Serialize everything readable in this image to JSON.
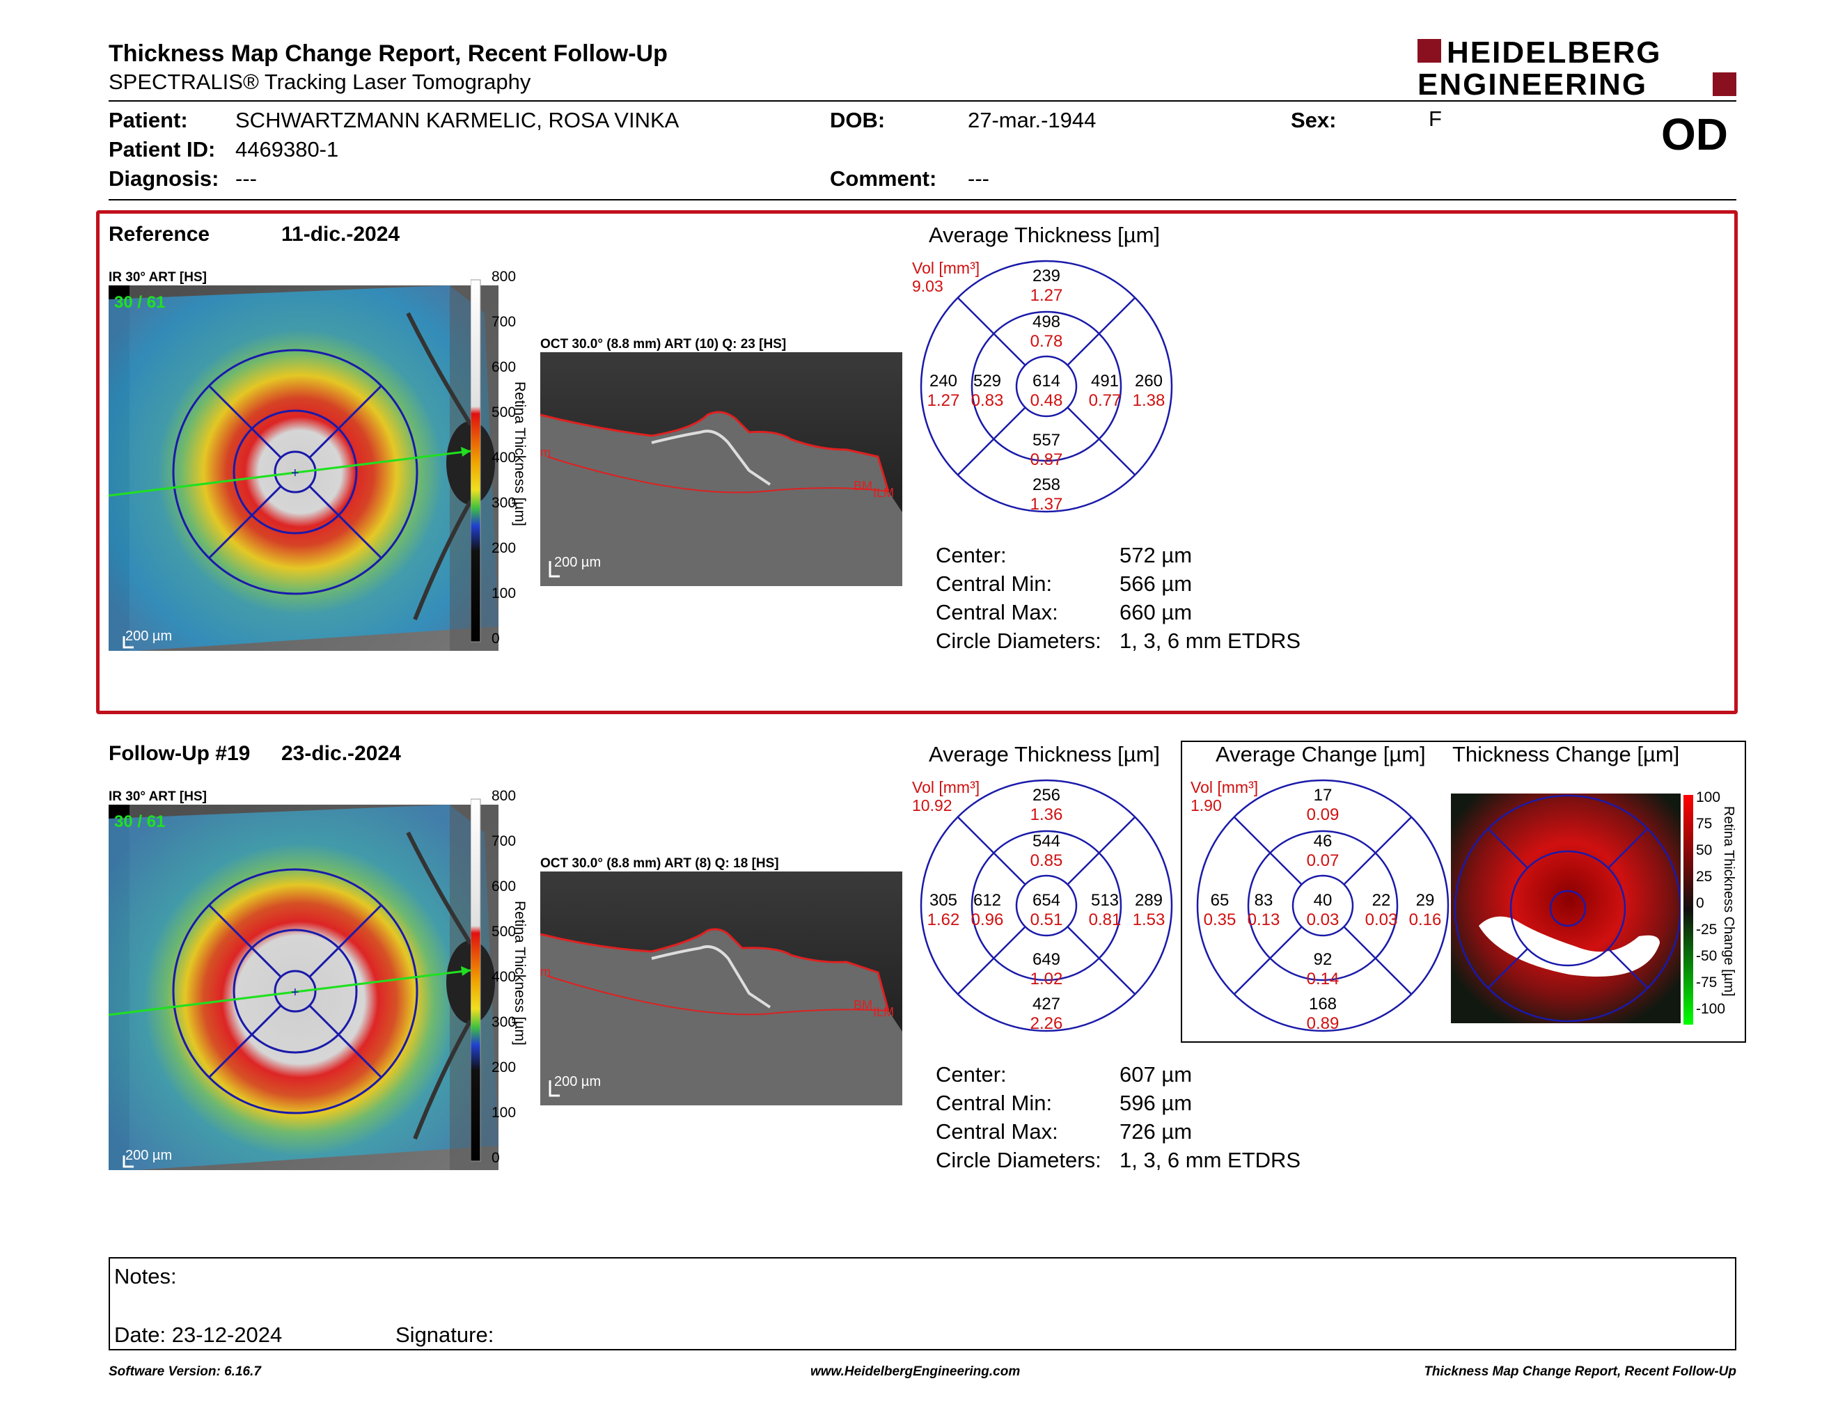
{
  "header": {
    "title": "Thickness Map Change Report, Recent Follow-Up",
    "subtitle": "SPECTRALIS® Tracking Laser Tomography",
    "logo_line1": "HEIDELBERG",
    "logo_line2": "ENGINEERING",
    "eye": "OD"
  },
  "patient": {
    "patient_label": "Patient:",
    "patient_value": "SCHWARTZMANN KARMELIC, ROSA VINKA",
    "id_label": "Patient ID:",
    "id_value": "4469380-1",
    "diagnosis_label": "Diagnosis:",
    "diagnosis_value": "---",
    "dob_label": "DOB:",
    "dob_value": "27-mar.-1944",
    "comment_label": "Comment:",
    "comment_value": "---",
    "sex_label": "Sex:",
    "sex_value": "F"
  },
  "reference": {
    "label": "Reference",
    "date": "11-dic.-2024",
    "ir_caption": "IR 30° ART [HS]",
    "ir_counter": "30 / 61",
    "ir_scale": "200 µm",
    "scale_axis_label": "Retina Thickness [µm]",
    "scale_ticks": [
      "800",
      "700",
      "600",
      "500",
      "400",
      "300",
      "200",
      "100",
      "0"
    ],
    "oct_caption": "OCT 30.0° (8.8 mm) ART (10) Q: 23 [HS]",
    "oct_scale": "200 µm",
    "avg_title": "Average Thickness [µm]",
    "vol_label": "Vol [mm³]",
    "vol_total": "9.03",
    "grid": {
      "outer_top": "239",
      "outer_top_v": "1.27",
      "inner_top": "498",
      "inner_top_v": "0.78",
      "outer_left": "240",
      "outer_left_v": "1.27",
      "inner_left": "529",
      "inner_left_v": "0.83",
      "center": "614",
      "center_v": "0.48",
      "inner_right": "491",
      "inner_right_v": "0.77",
      "outer_right": "260",
      "outer_right_v": "1.38",
      "inner_bottom": "557",
      "inner_bottom_v": "0.87",
      "outer_bottom": "258",
      "outer_bottom_v": "1.37"
    },
    "stats": [
      {
        "label": "Center:",
        "value": "572 µm"
      },
      {
        "label": "Central Min:",
        "value": "566 µm"
      },
      {
        "label": "Central Max:",
        "value": "660 µm"
      },
      {
        "label": "Circle Diameters:",
        "value": "1, 3, 6 mm ETDRS"
      }
    ]
  },
  "followup": {
    "label": "Follow-Up #19",
    "date": "23-dic.-2024",
    "ir_caption": "IR 30° ART [HS]",
    "ir_counter": "30 / 61",
    "ir_scale": "200 µm",
    "scale_axis_label": "Retina Thickness [µm]",
    "scale_ticks": [
      "800",
      "700",
      "600",
      "500",
      "400",
      "300",
      "200",
      "100",
      "0"
    ],
    "oct_caption": "OCT 30.0° (8.8 mm) ART (8) Q: 18 [HS]",
    "oct_scale": "200 µm",
    "avg_title": "Average Thickness [µm]",
    "vol_label": "Vol [mm³]",
    "vol_total": "10.92",
    "grid": {
      "outer_top": "256",
      "outer_top_v": "1.36",
      "inner_top": "544",
      "inner_top_v": "0.85",
      "outer_left": "305",
      "outer_left_v": "1.62",
      "inner_left": "612",
      "inner_left_v": "0.96",
      "center": "654",
      "center_v": "0.51",
      "inner_right": "513",
      "inner_right_v": "0.81",
      "outer_right": "289",
      "outer_right_v": "1.53",
      "inner_bottom": "649",
      "inner_bottom_v": "1.02",
      "outer_bottom": "427",
      "outer_bottom_v": "2.26"
    },
    "stats": [
      {
        "label": "Center:",
        "value": "607 µm"
      },
      {
        "label": "Central Min:",
        "value": "596 µm"
      },
      {
        "label": "Central Max:",
        "value": "726 µm"
      },
      {
        "label": "Circle Diameters:",
        "value": "1, 3, 6 mm ETDRS"
      }
    ]
  },
  "change": {
    "avg_title": "Average Change [µm]",
    "map_title": "Thickness Change [µm]",
    "vol_label": "Vol [mm³]",
    "vol_total": "1.90",
    "grid": {
      "outer_top": "17",
      "outer_top_v": "0.09",
      "inner_top": "46",
      "inner_top_v": "0.07",
      "outer_left": "65",
      "outer_left_v": "0.35",
      "inner_left": "83",
      "inner_left_v": "0.13",
      "center": "40",
      "center_v": "0.03",
      "inner_right": "22",
      "inner_right_v": "0.03",
      "outer_right": "29",
      "outer_right_v": "0.16",
      "inner_bottom": "92",
      "inner_bottom_v": "0.14",
      "outer_bottom": "168",
      "outer_bottom_v": "0.89"
    },
    "scale_axis_label": "Retina Thickness Change [µm]",
    "scale_ticks": [
      "100",
      "75",
      "50",
      "25",
      "0",
      "-25",
      "-50",
      "-75",
      "-100"
    ]
  },
  "notes": {
    "notes_label": "Notes:",
    "date_label": "Date: 23-12-2024",
    "signature_label": "Signature:"
  },
  "footer": {
    "left": "Software Version: 6.16.7",
    "center": "www.HeidelbergEngineering.com",
    "right": "Thickness Map Change Report, Recent Follow-Up"
  },
  "colors": {
    "accent_red": "#c0101c",
    "grid_blue": "#1a1aaa",
    "value_red": "#d01010"
  }
}
